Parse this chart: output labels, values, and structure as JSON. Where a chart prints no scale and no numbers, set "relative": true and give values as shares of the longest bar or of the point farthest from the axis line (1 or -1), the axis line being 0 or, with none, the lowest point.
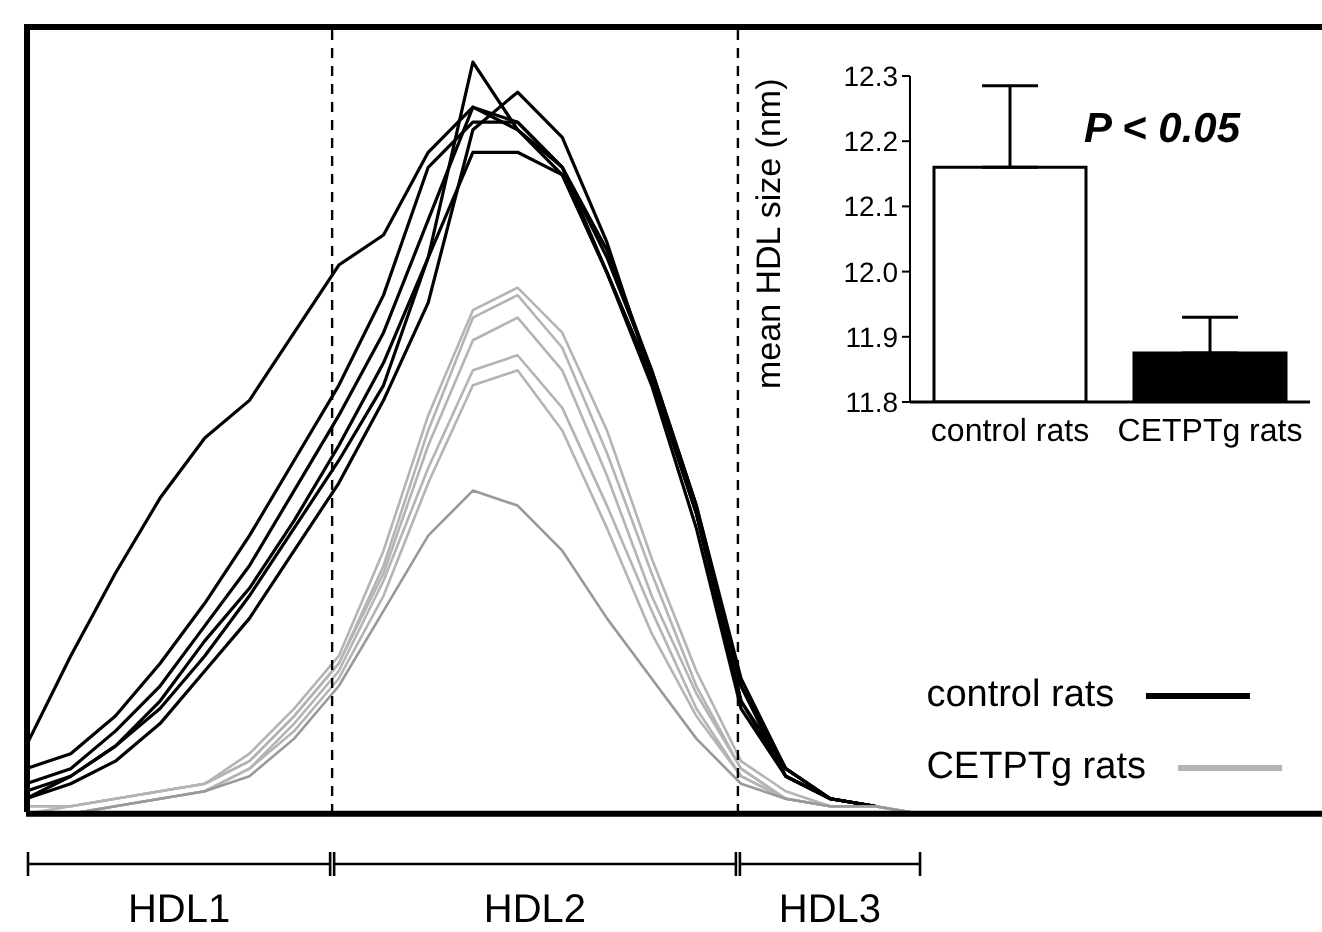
{
  "chart_data": [
    {
      "type": "line",
      "relative": true,
      "tick_labels": false,
      "legend": "bottom right",
      "categories": [
        null,
        null,
        null,
        null,
        null,
        null,
        null,
        null,
        null,
        null,
        null,
        null,
        null,
        null,
        null,
        null,
        null,
        null,
        null,
        null,
        null,
        null,
        null,
        null,
        null,
        null,
        null,
        null,
        null,
        null
      ],
      "series": [
        {
          "name": "control rats",
          "color": "#000000",
          "values": [
            0.09,
            0.21,
            0.32,
            0.42,
            0.5,
            0.55,
            0.64,
            0.73,
            0.77,
            0.88,
            0.94,
            0.91,
            0.86,
            0.72,
            0.58,
            0.4,
            0.17,
            0.05,
            0.02,
            0.01,
            null,
            null,
            null,
            null,
            null,
            null,
            null,
            null,
            null,
            null
          ]
        },
        {
          "color": "#000000",
          "values": [
            0.06,
            0.08,
            0.13,
            0.2,
            0.28,
            0.37,
            0.47,
            0.57,
            0.69,
            0.86,
            0.92,
            0.92,
            0.86,
            0.75,
            0.59,
            0.41,
            0.18,
            0.06,
            0.02,
            0.01,
            null,
            null,
            null,
            null,
            null,
            null,
            null,
            null,
            null,
            null
          ]
        },
        {
          "color": "#000000",
          "values": [
            0.04,
            0.06,
            0.11,
            0.17,
            0.25,
            0.33,
            0.43,
            0.53,
            0.64,
            0.79,
            0.94,
            0.92,
            0.86,
            0.74,
            0.59,
            0.41,
            0.17,
            0.06,
            0.02,
            0.01,
            null,
            null,
            null,
            null,
            null,
            null,
            null,
            null,
            null,
            null
          ]
        },
        {
          "color": "#000000",
          "values": [
            0.03,
            0.05,
            0.09,
            0.15,
            0.23,
            0.3,
            0.39,
            0.49,
            0.6,
            0.74,
            1,
            0.91,
            0.85,
            0.72,
            0.58,
            0.4,
            0.15,
            0.06,
            0.02,
            0.01,
            null,
            null,
            null,
            null,
            null,
            null,
            null,
            null,
            null,
            null
          ]
        },
        {
          "color": "#000000",
          "values": [
            0.02,
            0.05,
            0.09,
            0.14,
            0.21,
            0.29,
            0.38,
            0.47,
            0.57,
            0.74,
            0.88,
            0.88,
            0.85,
            0.72,
            0.57,
            0.38,
            0.14,
            0.05,
            0.02,
            0.01,
            null,
            null,
            null,
            null,
            null,
            null,
            null,
            null,
            null,
            null
          ]
        },
        {
          "color": "#000000",
          "values": [
            0.02,
            0.04,
            0.07,
            0.12,
            0.19,
            0.26,
            0.35,
            0.44,
            0.55,
            0.68,
            0.91,
            0.96,
            0.9,
            0.76,
            0.58,
            0.4,
            0.15,
            0.05,
            0.02,
            0.01,
            null,
            null,
            null,
            null,
            null,
            null,
            null,
            null,
            null,
            null
          ]
        },
        {
          "name": "CETPTg rats",
          "color": "#b4b4b4",
          "values": [
            0.01,
            0.01,
            0.02,
            0.03,
            0.04,
            0.08,
            0.14,
            0.21,
            0.35,
            0.53,
            0.67,
            0.7,
            0.64,
            0.51,
            0.34,
            0.19,
            0.07,
            0.03,
            0.01,
            0.01,
            0,
            null,
            null,
            null,
            null,
            null,
            null,
            null,
            null,
            null
          ]
        },
        {
          "color": "#b4b4b4",
          "values": [
            0.01,
            0.01,
            0.02,
            0.03,
            0.04,
            0.07,
            0.13,
            0.2,
            0.33,
            0.51,
            0.66,
            0.69,
            0.62,
            0.48,
            0.32,
            0.17,
            0.06,
            0.02,
            0.01,
            0.01,
            0,
            null,
            null,
            null,
            null,
            null,
            null,
            null,
            null,
            null
          ]
        },
        {
          "color": "#b4b4b4",
          "values": [
            0,
            0.01,
            0.02,
            0.03,
            0.04,
            0.07,
            0.13,
            0.2,
            0.32,
            0.49,
            0.63,
            0.66,
            0.59,
            0.45,
            0.29,
            0.16,
            0.06,
            0.02,
            0.01,
            0.01,
            0,
            null,
            null,
            null,
            null,
            null,
            null,
            null,
            null,
            null
          ]
        },
        {
          "color": "#b4b4b4",
          "values": [
            0,
            0,
            0.01,
            0.02,
            0.03,
            0.06,
            0.12,
            0.19,
            0.31,
            0.46,
            0.59,
            0.61,
            0.54,
            0.41,
            0.27,
            0.14,
            0.05,
            0.02,
            0.01,
            0.01,
            0,
            null,
            null,
            null,
            null,
            null,
            null,
            null,
            null,
            null
          ]
        },
        {
          "color": "#b4b4b4",
          "values": [
            0,
            0,
            0.01,
            0.02,
            0.03,
            0.06,
            0.11,
            0.18,
            0.29,
            0.44,
            0.57,
            0.59,
            0.51,
            0.38,
            0.24,
            0.13,
            0.05,
            0.02,
            0.01,
            0.01,
            0,
            null,
            null,
            null,
            null,
            null,
            null,
            null,
            null,
            null
          ]
        },
        {
          "color": "#999999",
          "values": [
            0,
            0,
            0.01,
            0.02,
            0.03,
            0.05,
            0.1,
            0.17,
            0.27,
            0.37,
            0.43,
            0.41,
            0.35,
            0.26,
            0.18,
            0.1,
            0.04,
            0.02,
            0.01,
            0.01,
            0,
            null,
            null,
            null,
            null,
            null,
            null,
            null,
            null,
            null
          ]
        }
      ],
      "annotations": [
        "HDL1",
        "HDL2",
        "HDL3"
      ]
    },
    {
      "type": "bar",
      "categories": [
        "control rats",
        "CETPTg rats"
      ],
      "values": [
        12.16,
        11.875
      ],
      "colors": [
        "#ffffff",
        "#000000"
      ],
      "errors": [
        [
          12.16,
          12.285
        ],
        [
          11.875,
          11.93
        ]
      ],
      "ylabel": "mean HDL size (nm)",
      "ylim": [
        11.8,
        12.3
      ],
      "yticks": [
        11.8,
        11.9,
        {
          "value": 12,
          "label": "12.0"
        },
        12.1,
        12.2,
        12.3
      ],
      "annotations": [
        "P < 0.05"
      ]
    }
  ]
}
